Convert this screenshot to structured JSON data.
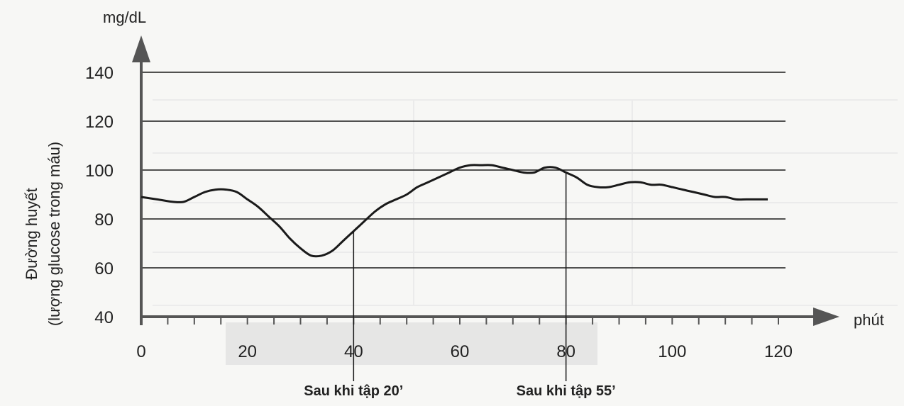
{
  "chart_data": {
    "type": "line",
    "title": "",
    "ylabel_unit": "mg/dL",
    "ylabel_lines": [
      "Đường huyết",
      "(lượng glucose trong máu)"
    ],
    "xlabel": "phút",
    "xlim": [
      0,
      120
    ],
    "ylim": [
      40,
      140
    ],
    "x_ticks": [
      0,
      20,
      40,
      60,
      80,
      100,
      120
    ],
    "y_ticks": [
      40,
      60,
      80,
      100,
      120,
      140
    ],
    "grid": "horizontal",
    "series": [
      {
        "x": [
          0,
          3,
          6,
          8,
          10,
          12,
          14,
          16,
          18,
          20,
          22,
          24,
          26,
          28,
          30,
          32,
          34,
          36,
          38,
          40,
          42,
          44,
          46,
          48,
          50,
          52,
          54,
          56,
          58,
          60,
          62,
          64,
          66,
          68,
          70,
          72,
          74,
          76,
          78,
          80,
          82,
          84,
          86,
          88,
          90,
          92,
          94,
          96,
          98,
          100,
          102,
          104,
          106,
          108,
          110,
          112,
          114,
          116,
          118
        ],
        "y": [
          89,
          88,
          87,
          87,
          89,
          91,
          92,
          92,
          91,
          88,
          85,
          81,
          77,
          72,
          68,
          65,
          65,
          67,
          71,
          75,
          79,
          83,
          86,
          88,
          90,
          93,
          95,
          97,
          99,
          101,
          102,
          102,
          102,
          101,
          100,
          99,
          99,
          101,
          101,
          99,
          97,
          94,
          93,
          93,
          94,
          95,
          95,
          94,
          94,
          93,
          92,
          91,
          90,
          89,
          89,
          88,
          88,
          88,
          88
        ]
      }
    ],
    "annotations": [
      {
        "x": 40,
        "label": "Sau khi tập 20’"
      },
      {
        "x": 80,
        "label": "Sau khi tập 55’"
      }
    ],
    "colors": {
      "line": "#1a1a1a",
      "axis": "#555555",
      "grid": "#1a1a1a",
      "highlight": "#d9d9d9"
    }
  }
}
